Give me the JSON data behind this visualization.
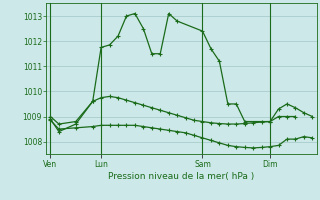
{
  "background_color": "#cde8e8",
  "grid_color": "#aacccc",
  "line_color": "#1a6b1a",
  "xlabel": "Pression niveau de la mer( hPa )",
  "ylim": [
    1007.5,
    1013.5
  ],
  "yticks": [
    1008,
    1009,
    1010,
    1011,
    1012,
    1013
  ],
  "day_labels": [
    "Ven",
    "Lun",
    "Sam",
    "Dim"
  ],
  "day_positions": [
    0,
    6,
    18,
    26
  ],
  "xlim": [
    -0.5,
    31.5
  ],
  "series1_x": [
    0,
    1,
    3,
    5,
    6,
    7,
    8,
    9,
    10,
    11,
    12,
    13,
    14,
    15,
    18,
    19,
    20,
    21,
    22,
    23,
    26,
    27,
    28,
    29
  ],
  "series1_y": [
    1008.9,
    1008.4,
    1008.7,
    1009.6,
    1011.75,
    1011.85,
    1012.2,
    1013.0,
    1013.1,
    1012.5,
    1011.5,
    1011.5,
    1013.1,
    1012.8,
    1012.4,
    1011.7,
    1011.2,
    1009.5,
    1009.5,
    1008.8,
    1008.8,
    1009.0,
    1009.0,
    1009.0
  ],
  "series2_x": [
    0,
    1,
    3,
    5,
    6,
    7,
    8,
    9,
    10,
    11,
    12,
    13,
    14,
    15,
    16,
    17,
    18,
    19,
    20,
    21,
    22,
    23,
    24,
    25,
    26,
    27,
    28,
    29,
    30,
    31
  ],
  "series2_y": [
    1009.0,
    1008.7,
    1008.8,
    1009.6,
    1009.75,
    1009.8,
    1009.75,
    1009.65,
    1009.55,
    1009.45,
    1009.35,
    1009.25,
    1009.15,
    1009.05,
    1008.95,
    1008.85,
    1008.8,
    1008.75,
    1008.72,
    1008.7,
    1008.7,
    1008.72,
    1008.75,
    1008.78,
    1008.8,
    1009.3,
    1009.5,
    1009.35,
    1009.15,
    1009.0
  ],
  "series3_x": [
    0,
    1,
    3,
    5,
    6,
    7,
    8,
    9,
    10,
    11,
    12,
    13,
    14,
    15,
    16,
    17,
    18,
    19,
    20,
    21,
    22,
    23,
    24,
    25,
    26,
    27,
    28,
    29,
    30,
    31
  ],
  "series3_y": [
    1008.85,
    1008.5,
    1008.55,
    1008.6,
    1008.65,
    1008.65,
    1008.65,
    1008.65,
    1008.65,
    1008.6,
    1008.55,
    1008.5,
    1008.45,
    1008.4,
    1008.35,
    1008.25,
    1008.15,
    1008.05,
    1007.95,
    1007.85,
    1007.8,
    1007.77,
    1007.75,
    1007.77,
    1007.8,
    1007.85,
    1008.1,
    1008.1,
    1008.2,
    1008.15
  ]
}
